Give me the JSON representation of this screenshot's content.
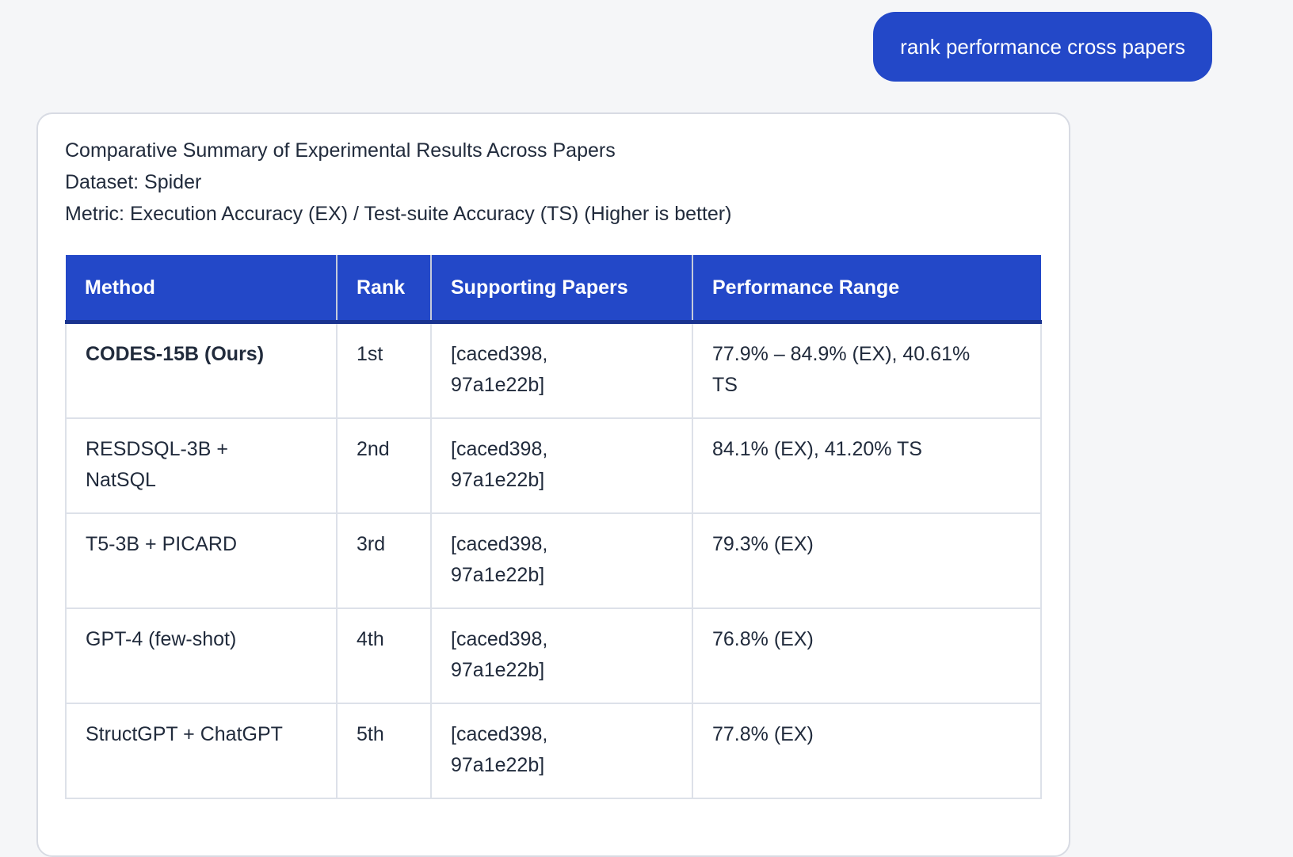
{
  "colors": {
    "background": "#f5f6f8",
    "primary_blue": "#2348c8",
    "header_bottom_border": "#19338f",
    "table_border": "#dde1e9",
    "card_border": "#d8dbe3",
    "text_dark": "#212b3c",
    "bubble_text": "#ffffff"
  },
  "user_message": {
    "text": "rank performance cross papers"
  },
  "card": {
    "title": "Comparative Summary of Experimental Results Across Papers",
    "dataset_line": "Dataset: Spider",
    "metric_line": "Metric: Execution Accuracy (EX) / Test-suite Accuracy (TS) (Higher is better)",
    "table": {
      "headers": [
        "Method",
        "Rank",
        "Supporting Papers",
        "Performance Range"
      ],
      "rows": [
        {
          "method": "CODES-15B (Ours)",
          "method_bold": true,
          "rank": "1st",
          "papers": "[caced398,\n97a1e22b]",
          "performance": "77.9% – 84.9% (EX), 40.61%\nTS"
        },
        {
          "method": "RESDSQL-3B +\nNatSQL",
          "method_bold": false,
          "rank": "2nd",
          "papers": "[caced398,\n97a1e22b]",
          "performance": "84.1% (EX), 41.20% TS"
        },
        {
          "method": "T5-3B + PICARD",
          "method_bold": false,
          "rank": "3rd",
          "papers": "[caced398,\n97a1e22b]",
          "performance": "79.3% (EX)"
        },
        {
          "method": "GPT-4 (few-shot)",
          "method_bold": false,
          "rank": "4th",
          "papers": "[caced398,\n97a1e22b]",
          "performance": "76.8% (EX)"
        },
        {
          "method": "StructGPT + ChatGPT",
          "method_bold": false,
          "rank": "5th",
          "papers": "[caced398,\n97a1e22b]",
          "performance": "77.8% (EX)"
        }
      ]
    }
  }
}
